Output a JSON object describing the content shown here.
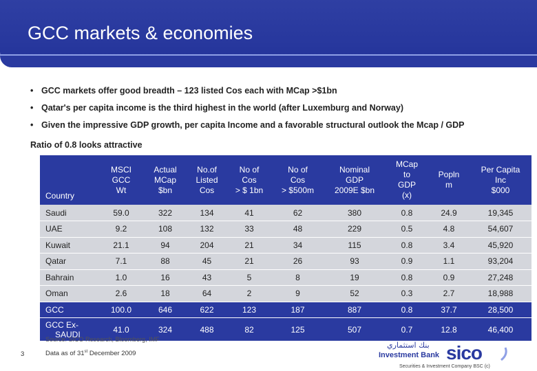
{
  "slide": {
    "title": "GCC markets & economies",
    "page_number": "3"
  },
  "bullets": [
    "GCC markets offer good breadth – 123 listed Cos each with MCap >$1bn",
    "Qatar's per capita income is the third highest in the world (after Luxemburg and Norway)",
    "Given the impressive GDP growth, per capita Income and a favorable structural outlook the Mcap / GDP",
    "Ratio of 0.8 looks attractive"
  ],
  "table": {
    "headers": [
      [
        "Country"
      ],
      [
        "MSCI",
        "GCC",
        "Wt"
      ],
      [
        "Actual",
        "MCap",
        "$bn"
      ],
      [
        "No.of",
        "Listed",
        "Cos"
      ],
      [
        "No of",
        "Cos",
        "> $ 1bn"
      ],
      [
        "No of",
        "Cos",
        "> $500m"
      ],
      [
        "Nominal",
        "GDP",
        "2009E $bn"
      ],
      [
        "MCap",
        "to",
        "GDP",
        "(x)"
      ],
      [
        "Popln",
        "m"
      ],
      [
        "Per Capita",
        "Inc",
        "$000"
      ]
    ],
    "rows": [
      [
        "Saudi",
        "59.0",
        "322",
        "134",
        "41",
        "62",
        "380",
        "0.8",
        "24.9",
        "19,345"
      ],
      [
        "UAE",
        "9.2",
        "108",
        "132",
        "33",
        "48",
        "229",
        "0.5",
        "4.8",
        "54,607"
      ],
      [
        "Kuwait",
        "21.1",
        "94",
        "204",
        "21",
        "34",
        "115",
        "0.8",
        "3.4",
        "45,920"
      ],
      [
        "Qatar",
        "7.1",
        "88",
        "45",
        "21",
        "26",
        "93",
        "0.9",
        "1.1",
        "93,204"
      ],
      [
        "Bahrain",
        "1.0",
        "16",
        "43",
        "5",
        "8",
        "19",
        "0.8",
        "0.9",
        "27,248"
      ],
      [
        "Oman",
        "2.6",
        "18",
        "64",
        "2",
        "9",
        "52",
        "0.3",
        "2.7",
        "18,988"
      ]
    ],
    "totals": [
      [
        "GCC",
        "100.0",
        "646",
        "622",
        "123",
        "187",
        "887",
        "0.8",
        "37.7",
        "28,500"
      ],
      [
        "GCC Ex-",
        "SAUDI",
        "41.0",
        "324",
        "488",
        "82",
        "125",
        "507",
        "0.7",
        "12.8",
        "46,400"
      ]
    ]
  },
  "footer": {
    "source": "Source: SICO Research, Bloomberg, IMF",
    "as_of_prefix": "Data as of 31",
    "as_of_sup": "st",
    "as_of_suffix": " December 2009"
  },
  "logo": {
    "arabic": "بنك استثماري",
    "investment_bank": "Investment Bank",
    "brand": "sico",
    "company": "Securities & Investment Company BSC (c)"
  },
  "colors": {
    "header_blue": "#2a3aa0",
    "row_grey": "#d4d6dc"
  }
}
